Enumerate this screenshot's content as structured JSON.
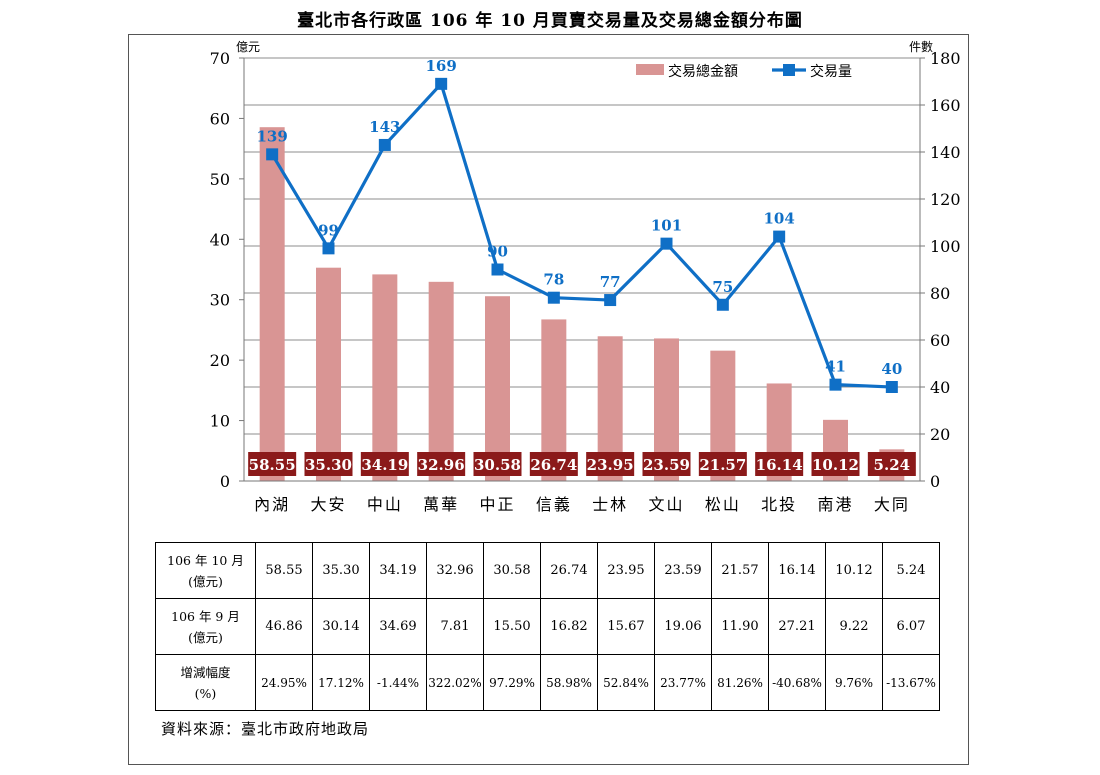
{
  "title": "臺北市各行政區 106 年 10 月買賣交易量及交易總金額分布圖",
  "chart_data": {
    "type": "bar",
    "categories": [
      "內湖",
      "大安",
      "中山",
      "萬華",
      "中正",
      "信義",
      "士林",
      "文山",
      "松山",
      "北投",
      "南港",
      "大同"
    ],
    "series": [
      {
        "name": "交易總金額",
        "type": "bar",
        "axis": "left",
        "color": "#d99594",
        "values": [
          58.55,
          35.3,
          34.19,
          32.96,
          30.58,
          26.74,
          23.95,
          23.59,
          21.57,
          16.14,
          10.12,
          5.24
        ],
        "labels": [
          "58.55",
          "35.30",
          "34.19",
          "32.96",
          "30.58",
          "26.74",
          "23.95",
          "23.59",
          "21.57",
          "16.14",
          "10.12",
          "5.24"
        ]
      },
      {
        "name": "交易量",
        "type": "line",
        "axis": "right",
        "color": "#0f6fc6",
        "values": [
          139,
          99,
          143,
          169,
          90,
          78,
          77,
          101,
          75,
          104,
          41,
          40
        ]
      }
    ],
    "y_left": {
      "label": "億元",
      "range": [
        0,
        70
      ],
      "ticks": [
        "0",
        "10",
        "20",
        "30",
        "40",
        "50",
        "60",
        "70"
      ]
    },
    "y_right": {
      "label": "件數",
      "range": [
        0,
        180
      ],
      "ticks": [
        "0",
        "20",
        "40",
        "60",
        "80",
        "100",
        "120",
        "140",
        "160",
        "180"
      ]
    },
    "grid": true,
    "legend": "top-right",
    "bar_label_bg": "#8b1a1a"
  },
  "table": {
    "rows": [
      {
        "head": [
          "106 年 10 月",
          "(億元)"
        ],
        "cells": [
          "58.55",
          "35.30",
          "34.19",
          "32.96",
          "30.58",
          "26.74",
          "23.95",
          "23.59",
          "21.57",
          "16.14",
          "10.12",
          "5.24"
        ]
      },
      {
        "head": [
          "106 年 9 月",
          "(億元)"
        ],
        "cells": [
          "46.86",
          "30.14",
          "34.69",
          "7.81",
          "15.50",
          "16.82",
          "15.67",
          "19.06",
          "11.90",
          "27.21",
          "9.22",
          "6.07"
        ]
      },
      {
        "head": [
          "增減幅度",
          "(%)"
        ],
        "cells": [
          "24.95%",
          "17.12%",
          "-1.44%",
          "322.02%",
          "97.29%",
          "58.98%",
          "52.84%",
          "23.77%",
          "81.26%",
          "-40.68%",
          "9.76%",
          "-13.67%"
        ]
      }
    ]
  },
  "source": "資料來源：臺北市政府地政局"
}
